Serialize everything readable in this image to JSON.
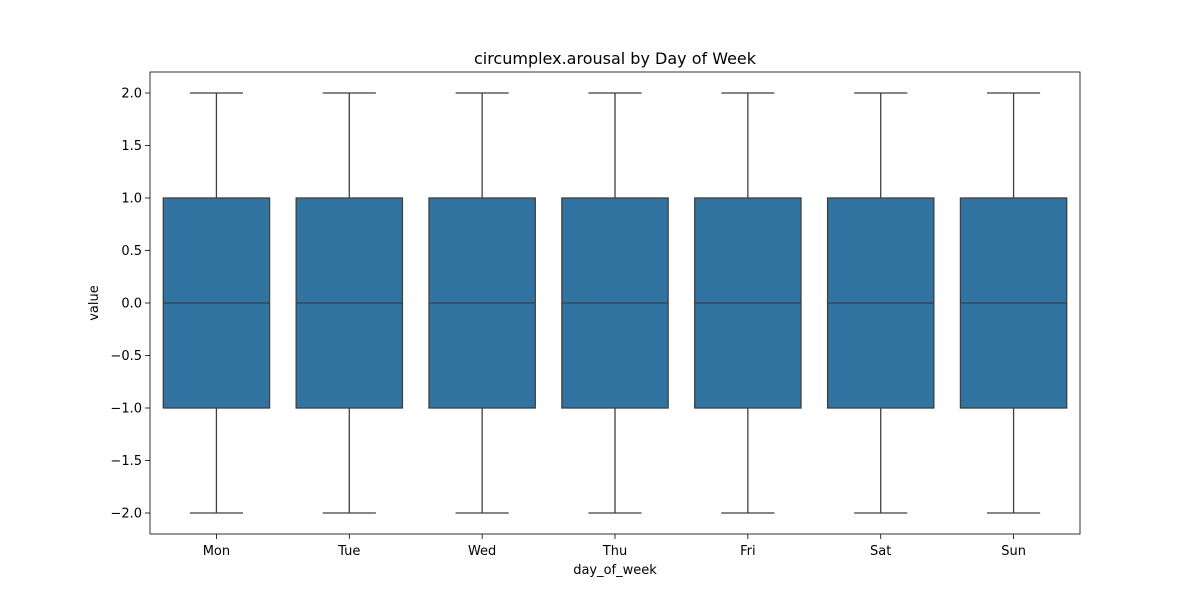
{
  "chart_data": {
    "type": "box",
    "title": "circumplex.arousal by Day of Week",
    "xlabel": "day_of_week",
    "ylabel": "value",
    "ylim": [
      -2.2,
      2.2
    ],
    "yticks": [
      "2.0",
      "1.5",
      "1.0",
      "0.5",
      "0.0",
      "−0.5",
      "−1.0",
      "−1.5",
      "−2.0"
    ],
    "ytick_values": [
      2.0,
      1.5,
      1.0,
      0.5,
      0.0,
      -0.5,
      -1.0,
      -1.5,
      -2.0
    ],
    "grid": false,
    "categories": [
      "Mon",
      "Tue",
      "Wed",
      "Thu",
      "Fri",
      "Sat",
      "Sun"
    ],
    "boxes": [
      {
        "category": "Mon",
        "whisker_low": -2.0,
        "q1": -1.0,
        "median": 0.0,
        "q3": 1.0,
        "whisker_high": 2.0
      },
      {
        "category": "Tue",
        "whisker_low": -2.0,
        "q1": -1.0,
        "median": 0.0,
        "q3": 1.0,
        "whisker_high": 2.0
      },
      {
        "category": "Wed",
        "whisker_low": -2.0,
        "q1": -1.0,
        "median": 0.0,
        "q3": 1.0,
        "whisker_high": 2.0
      },
      {
        "category": "Thu",
        "whisker_low": -2.0,
        "q1": -1.0,
        "median": 0.0,
        "q3": 1.0,
        "whisker_high": 2.0
      },
      {
        "category": "Fri",
        "whisker_low": -2.0,
        "q1": -1.0,
        "median": 0.0,
        "q3": 1.0,
        "whisker_high": 2.0
      },
      {
        "category": "Sat",
        "whisker_low": -2.0,
        "q1": -1.0,
        "median": 0.0,
        "q3": 1.0,
        "whisker_high": 2.0
      },
      {
        "category": "Sun",
        "whisker_low": -2.0,
        "q1": -1.0,
        "median": 0.0,
        "q3": 1.0,
        "whisker_high": 2.0
      }
    ],
    "colors": {
      "box_fill": "#3274a1",
      "line": "#3f3f3f",
      "axis": "#000000"
    }
  }
}
